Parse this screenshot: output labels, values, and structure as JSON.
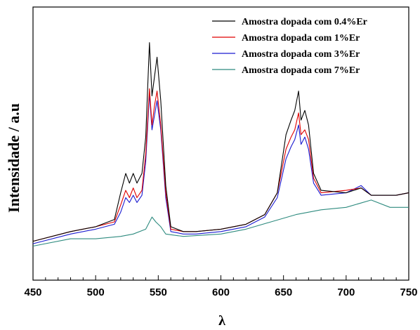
{
  "chart_data": {
    "type": "line",
    "title": "",
    "xlabel": "λ",
    "ylabel": "Intensidade / a.u",
    "xlim": [
      450,
      750
    ],
    "ylim": [
      0,
      1
    ],
    "x_ticks": [
      450,
      500,
      550,
      600,
      650,
      700,
      750
    ],
    "y_ticks_shown": false,
    "grid": false,
    "legend_position": "top-right",
    "series": [
      {
        "name": "Amostra dopada com 0.4%Er",
        "color": "#000000",
        "points": [
          [
            450,
            0.12
          ],
          [
            480,
            0.16
          ],
          [
            500,
            0.18
          ],
          [
            515,
            0.21
          ],
          [
            520,
            0.32
          ],
          [
            524,
            0.4
          ],
          [
            527,
            0.36
          ],
          [
            530,
            0.4
          ],
          [
            533,
            0.36
          ],
          [
            537,
            0.4
          ],
          [
            540,
            0.55
          ],
          [
            543,
            0.94
          ],
          [
            545,
            0.72
          ],
          [
            547,
            0.8
          ],
          [
            549,
            0.88
          ],
          [
            552,
            0.7
          ],
          [
            556,
            0.35
          ],
          [
            560,
            0.18
          ],
          [
            570,
            0.16
          ],
          [
            580,
            0.16
          ],
          [
            600,
            0.17
          ],
          [
            620,
            0.19
          ],
          [
            635,
            0.23
          ],
          [
            645,
            0.32
          ],
          [
            652,
            0.56
          ],
          [
            656,
            0.62
          ],
          [
            659,
            0.66
          ],
          [
            662,
            0.74
          ],
          [
            664,
            0.62
          ],
          [
            667,
            0.66
          ],
          [
            670,
            0.6
          ],
          [
            674,
            0.4
          ],
          [
            680,
            0.33
          ],
          [
            700,
            0.32
          ],
          [
            712,
            0.34
          ],
          [
            720,
            0.31
          ],
          [
            740,
            0.31
          ],
          [
            750,
            0.32
          ]
        ]
      },
      {
        "name": "Amostra dopada com 1%Er",
        "color": "#e00000",
        "points": [
          [
            450,
            0.12
          ],
          [
            480,
            0.16
          ],
          [
            500,
            0.18
          ],
          [
            515,
            0.2
          ],
          [
            520,
            0.27
          ],
          [
            524,
            0.33
          ],
          [
            527,
            0.3
          ],
          [
            530,
            0.34
          ],
          [
            533,
            0.3
          ],
          [
            537,
            0.33
          ],
          [
            540,
            0.48
          ],
          [
            543,
            0.75
          ],
          [
            545,
            0.6
          ],
          [
            547,
            0.68
          ],
          [
            549,
            0.74
          ],
          [
            552,
            0.6
          ],
          [
            556,
            0.32
          ],
          [
            560,
            0.17
          ],
          [
            570,
            0.16
          ],
          [
            580,
            0.16
          ],
          [
            600,
            0.17
          ],
          [
            620,
            0.19
          ],
          [
            635,
            0.23
          ],
          [
            645,
            0.32
          ],
          [
            652,
            0.5
          ],
          [
            656,
            0.55
          ],
          [
            659,
            0.58
          ],
          [
            662,
            0.65
          ],
          [
            664,
            0.56
          ],
          [
            667,
            0.58
          ],
          [
            670,
            0.54
          ],
          [
            674,
            0.38
          ],
          [
            680,
            0.32
          ],
          [
            700,
            0.33
          ],
          [
            712,
            0.34
          ],
          [
            720,
            0.31
          ],
          [
            740,
            0.31
          ],
          [
            750,
            0.32
          ]
        ]
      },
      {
        "name": "Amostra dopada com 3%Er",
        "color": "#1a1ad0",
        "points": [
          [
            450,
            0.11
          ],
          [
            480,
            0.15
          ],
          [
            500,
            0.17
          ],
          [
            515,
            0.19
          ],
          [
            520,
            0.24
          ],
          [
            524,
            0.3
          ],
          [
            527,
            0.28
          ],
          [
            530,
            0.31
          ],
          [
            533,
            0.28
          ],
          [
            537,
            0.31
          ],
          [
            540,
            0.45
          ],
          [
            543,
            0.73
          ],
          [
            545,
            0.58
          ],
          [
            547,
            0.64
          ],
          [
            549,
            0.7
          ],
          [
            552,
            0.58
          ],
          [
            556,
            0.3
          ],
          [
            560,
            0.16
          ],
          [
            570,
            0.15
          ],
          [
            580,
            0.15
          ],
          [
            600,
            0.16
          ],
          [
            620,
            0.18
          ],
          [
            635,
            0.22
          ],
          [
            645,
            0.3
          ],
          [
            652,
            0.46
          ],
          [
            656,
            0.51
          ],
          [
            659,
            0.54
          ],
          [
            662,
            0.6
          ],
          [
            664,
            0.52
          ],
          [
            667,
            0.55
          ],
          [
            670,
            0.5
          ],
          [
            674,
            0.36
          ],
          [
            680,
            0.31
          ],
          [
            700,
            0.32
          ],
          [
            712,
            0.35
          ],
          [
            720,
            0.31
          ],
          [
            740,
            0.31
          ],
          [
            750,
            0.32
          ]
        ]
      },
      {
        "name": "Amostra dopada com 7%Er",
        "color": "#2e8b7f",
        "points": [
          [
            450,
            0.1
          ],
          [
            480,
            0.13
          ],
          [
            500,
            0.13
          ],
          [
            520,
            0.14
          ],
          [
            530,
            0.15
          ],
          [
            540,
            0.17
          ],
          [
            545,
            0.22
          ],
          [
            548,
            0.2
          ],
          [
            552,
            0.18
          ],
          [
            556,
            0.15
          ],
          [
            570,
            0.14
          ],
          [
            600,
            0.15
          ],
          [
            620,
            0.17
          ],
          [
            640,
            0.2
          ],
          [
            660,
            0.23
          ],
          [
            680,
            0.25
          ],
          [
            700,
            0.26
          ],
          [
            720,
            0.29
          ],
          [
            735,
            0.26
          ],
          [
            750,
            0.26
          ]
        ]
      }
    ]
  }
}
